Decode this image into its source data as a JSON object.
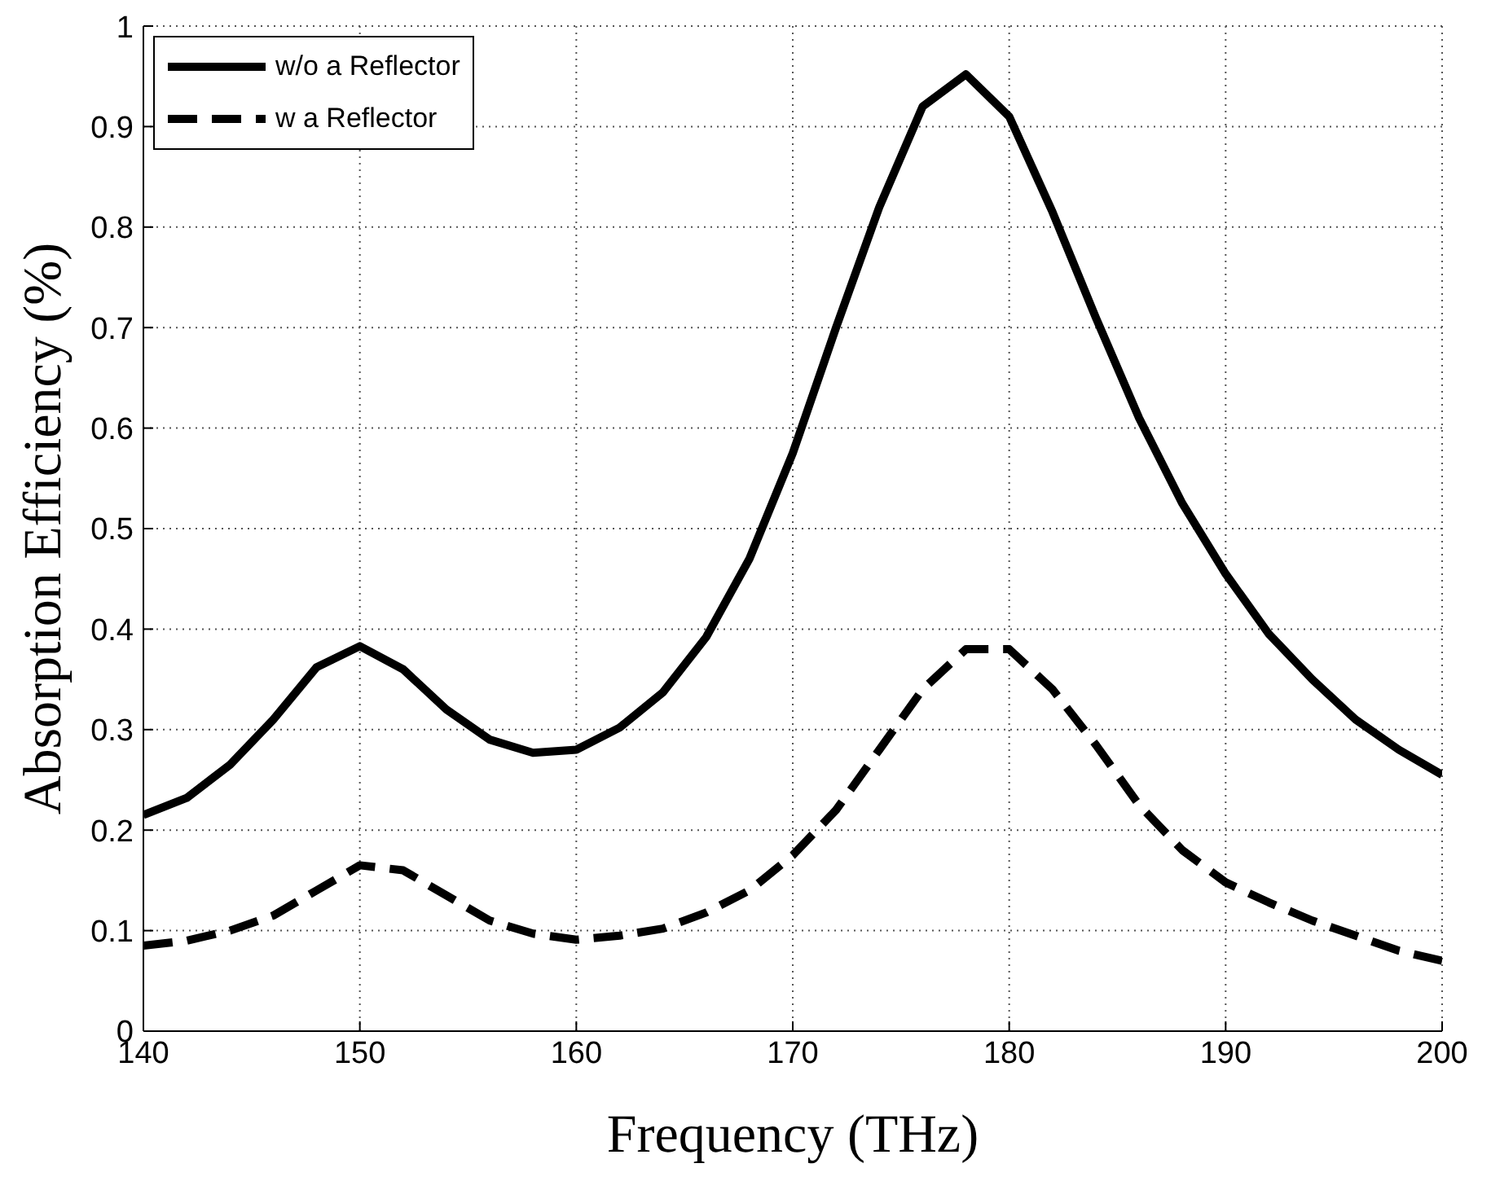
{
  "chart_data": {
    "type": "line",
    "xlabel": "Frequency (THz)",
    "ylabel": "Absorption Efficiency (%)",
    "x": [
      140,
      142,
      144,
      146,
      148,
      150,
      152,
      154,
      156,
      158,
      160,
      162,
      164,
      166,
      168,
      170,
      172,
      174,
      176,
      178,
      180,
      182,
      184,
      186,
      188,
      190,
      192,
      194,
      196,
      198,
      200
    ],
    "series": [
      {
        "name": "w/o a Reflector",
        "color": "#000000",
        "line_style": "solid",
        "values": [
          0.215,
          0.232,
          0.265,
          0.31,
          0.362,
          0.383,
          0.36,
          0.32,
          0.29,
          0.277,
          0.28,
          0.302,
          0.337,
          0.392,
          0.47,
          0.575,
          0.7,
          0.82,
          0.92,
          0.952,
          0.91,
          0.815,
          0.71,
          0.61,
          0.525,
          0.455,
          0.395,
          0.35,
          0.31,
          0.28,
          0.255
        ]
      },
      {
        "name": "w a Reflector",
        "color": "#000000",
        "line_style": "dashed",
        "values": [
          0.085,
          0.09,
          0.1,
          0.115,
          0.14,
          0.165,
          0.16,
          0.135,
          0.11,
          0.097,
          0.091,
          0.095,
          0.102,
          0.118,
          0.14,
          0.175,
          0.22,
          0.28,
          0.34,
          0.38,
          0.38,
          0.34,
          0.285,
          0.225,
          0.18,
          0.148,
          0.128,
          0.11,
          0.095,
          0.08,
          0.07
        ]
      }
    ],
    "xlim": [
      140,
      200
    ],
    "xticks": [
      140,
      150,
      160,
      170,
      180,
      190,
      200
    ],
    "ylim": [
      0,
      1
    ],
    "yticks": [
      0,
      0.1,
      0.2,
      0.3,
      0.4,
      0.5,
      0.6,
      0.7,
      0.8,
      0.9,
      1
    ],
    "grid": true,
    "legend": "top left",
    "marker": "none"
  }
}
